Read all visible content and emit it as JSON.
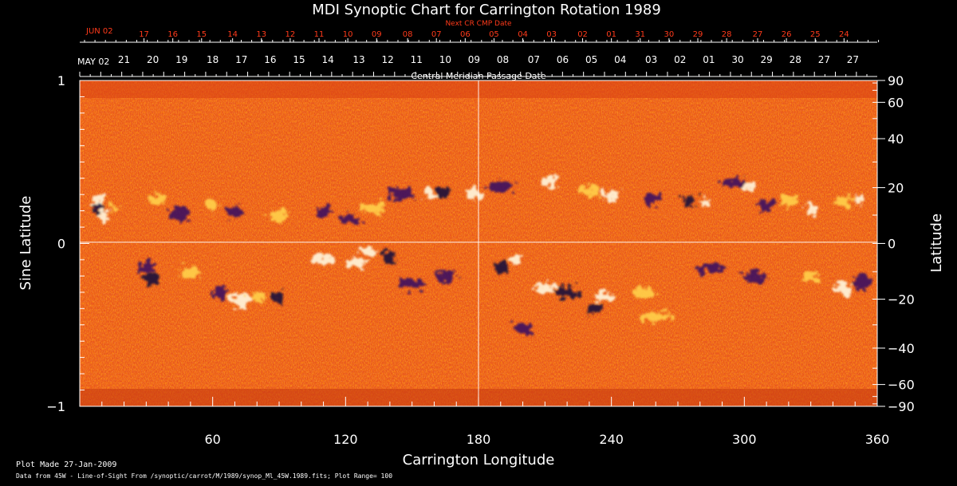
{
  "chart_data": {
    "type": "heatmap",
    "title": "MDI Synoptic Chart for Carrington Rotation 1989",
    "xlabel": "Carrington Longitude",
    "ylabel_left": "Sine Latitude",
    "ylabel_right": "Latitude",
    "xlim": [
      0,
      360
    ],
    "ylim": [
      -1,
      1
    ],
    "x_ticks": [
      60,
      120,
      180,
      240,
      300,
      360
    ],
    "y_ticks_left": [
      1,
      0,
      -1
    ],
    "y_ticks_left_labels": [
      "1",
      "0",
      "−1"
    ],
    "latitude_ticks": [
      90,
      60,
      40,
      20,
      0,
      -20,
      -40,
      -60,
      -90
    ],
    "latitude_tick_labels": [
      "90",
      "60",
      "40",
      "20",
      "0",
      "−20",
      "−40",
      "−60",
      "−90"
    ],
    "top_axis": {
      "label": "Central Meridian Passage Date",
      "start_label": "MAY 02",
      "dates": [
        "21",
        "20",
        "19",
        "18",
        "17",
        "16",
        "15",
        "14",
        "13",
        "12",
        "11",
        "10",
        "09",
        "08",
        "07",
        "06",
        "05",
        "04",
        "03",
        "02",
        "01",
        "30",
        "29",
        "28",
        "27",
        "27"
      ],
      "date_longitudes": [
        20,
        33,
        46,
        60,
        73,
        86,
        99,
        112,
        126,
        139,
        152,
        165,
        178,
        191,
        205,
        218,
        231,
        244,
        258,
        271,
        284,
        297,
        310,
        323,
        336,
        349
      ]
    },
    "next_cr_axis": {
      "label": "Next CR CMP Date",
      "start_label": "JUN 02",
      "color": "#ff3a1a",
      "dates": [
        "17",
        "16",
        "15",
        "14",
        "13",
        "12",
        "11",
        "10",
        "09",
        "08",
        "07",
        "06",
        "05",
        "04",
        "03",
        "02",
        "01",
        "31",
        "30",
        "29",
        "28",
        "27",
        "26",
        "25",
        "24"
      ],
      "date_longitudes": [
        29,
        42,
        55,
        69,
        82,
        95,
        108,
        121,
        134,
        148,
        161,
        174,
        187,
        200,
        213,
        227,
        240,
        253,
        266,
        279,
        292,
        306,
        319,
        332,
        345
      ]
    },
    "colormap": [
      "#000030",
      "#3a0a6a",
      "#c0401a",
      "#ff6a1a",
      "#ffd040",
      "#ffffff"
    ],
    "grid": "crosshair at 180 longitude and 0 latitude"
  },
  "footer": {
    "plot_made": "Plot Made 27-Jan-2009",
    "data_source": "Data from 45W - Line-of-Sight From /synoptic/carrot/M/1989/synop_Ml_45W.1989.fits; Plot Range=  100"
  }
}
